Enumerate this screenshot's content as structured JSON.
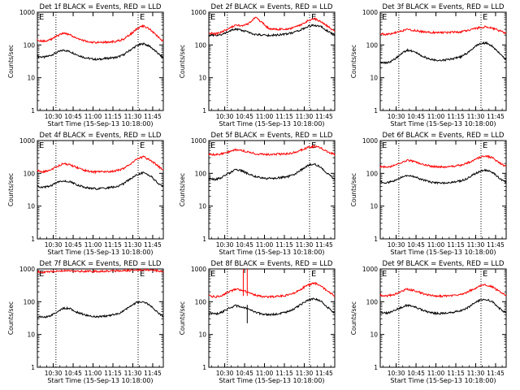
{
  "figure": {
    "start_time_label": "Start Time (15-Sep-13 10:18:00)",
    "time_ticks": [
      "10:30",
      "10:45",
      "11:00",
      "11:15",
      "11:30",
      "11:45"
    ],
    "y_axis_label": "Counts/sec",
    "y_ticks": [
      "1",
      "10",
      "100",
      "1000"
    ],
    "marker_letter": "E",
    "colors": {
      "events": "#000000",
      "lld": "#ff0000",
      "axes": "#000000"
    }
  },
  "chart_data": [
    {
      "type": "line",
      "title": "Det 1f BLACK = Events, RED = LLD",
      "xlabel": "Start Time (15-Sep-13 10:18:00)",
      "ylabel": "Counts/sec",
      "x_range_minutes": [
        0,
        95
      ],
      "ylim": [
        1,
        1000
      ],
      "y_scale": "log",
      "vertical_markers_minutes": [
        14,
        76,
        95
      ],
      "series": [
        {
          "name": "Events",
          "color": "#000000",
          "x": [
            0,
            5,
            10,
            15,
            20,
            25,
            30,
            35,
            40,
            45,
            50,
            55,
            60,
            65,
            70,
            75,
            80,
            85,
            90,
            95
          ],
          "values": [
            45,
            42,
            48,
            60,
            70,
            62,
            50,
            42,
            38,
            36,
            38,
            40,
            42,
            50,
            70,
            95,
            110,
            90,
            60,
            40
          ]
        },
        {
          "name": "LLD",
          "color": "#ff0000",
          "x": [
            0,
            5,
            10,
            15,
            20,
            25,
            30,
            35,
            40,
            45,
            50,
            55,
            60,
            65,
            70,
            75,
            80,
            85,
            90,
            95
          ],
          "values": [
            140,
            130,
            145,
            190,
            230,
            200,
            160,
            135,
            120,
            118,
            120,
            125,
            130,
            150,
            210,
            310,
            380,
            300,
            190,
            130
          ]
        }
      ]
    },
    {
      "type": "line",
      "title": "Det 2f BLACK = Events, RED = LLD",
      "xlabel": "Start Time (15-Sep-13 10:18:00)",
      "ylabel": "Counts/sec",
      "x_range_minutes": [
        0,
        95
      ],
      "ylim": [
        1,
        1000
      ],
      "y_scale": "log",
      "vertical_markers_minutes": [
        14,
        76,
        95
      ],
      "series": [
        {
          "name": "Events",
          "color": "#000000",
          "x": [
            0,
            5,
            10,
            15,
            20,
            25,
            30,
            35,
            40,
            45,
            50,
            55,
            60,
            65,
            70,
            75,
            80,
            85,
            90,
            95
          ],
          "values": [
            200,
            190,
            210,
            260,
            300,
            280,
            240,
            210,
            200,
            195,
            200,
            210,
            220,
            250,
            300,
            370,
            400,
            350,
            260,
            200
          ]
        },
        {
          "name": "LLD",
          "color": "#ff0000",
          "x": [
            0,
            5,
            10,
            15,
            20,
            25,
            30,
            35,
            40,
            45,
            50,
            55,
            60,
            65,
            70,
            75,
            80,
            85,
            90,
            95
          ],
          "values": [
            230,
            220,
            250,
            320,
            400,
            380,
            450,
            700,
            500,
            320,
            300,
            300,
            310,
            340,
            420,
            560,
            620,
            500,
            360,
            260
          ]
        }
      ]
    },
    {
      "type": "line",
      "title": "Det 3f BLACK = Events, RED = LLD",
      "xlabel": "Start Time (15-Sep-13 10:18:00)",
      "ylabel": "Counts/sec",
      "x_range_minutes": [
        0,
        95
      ],
      "ylim": [
        1,
        1000
      ],
      "y_scale": "log",
      "vertical_markers_minutes": [
        14,
        76,
        95
      ],
      "series": [
        {
          "name": "Events",
          "color": "#000000",
          "x": [
            0,
            5,
            10,
            15,
            20,
            25,
            30,
            35,
            40,
            45,
            50,
            55,
            60,
            65,
            70,
            75,
            80,
            85,
            90,
            95
          ],
          "values": [
            30,
            28,
            35,
            50,
            70,
            65,
            50,
            40,
            35,
            33,
            35,
            38,
            42,
            55,
            80,
            110,
            115,
            90,
            55,
            35
          ]
        },
        {
          "name": "LLD",
          "color": "#ff0000",
          "x": [
            0,
            5,
            10,
            15,
            20,
            25,
            30,
            35,
            40,
            45,
            50,
            55,
            60,
            65,
            70,
            75,
            80,
            85,
            90,
            95
          ],
          "values": [
            220,
            210,
            230,
            260,
            290,
            280,
            260,
            245,
            240,
            238,
            240,
            245,
            250,
            270,
            300,
            340,
            360,
            320,
            270,
            230
          ]
        }
      ]
    },
    {
      "type": "line",
      "title": "Det 4f BLACK = Events, RED = LLD",
      "xlabel": "Start Time (15-Sep-13 10:18:00)",
      "ylabel": "Counts/sec",
      "x_range_minutes": [
        0,
        95
      ],
      "ylim": [
        1,
        1000
      ],
      "y_scale": "log",
      "vertical_markers_minutes": [
        14,
        76,
        95
      ],
      "series": [
        {
          "name": "Events",
          "color": "#000000",
          "x": [
            0,
            5,
            10,
            15,
            20,
            25,
            30,
            35,
            40,
            45,
            50,
            55,
            60,
            65,
            70,
            75,
            80,
            85,
            90,
            95
          ],
          "values": [
            40,
            38,
            42,
            52,
            60,
            55,
            45,
            38,
            35,
            34,
            35,
            37,
            40,
            48,
            68,
            90,
            105,
            85,
            55,
            38
          ]
        },
        {
          "name": "LLD",
          "color": "#ff0000",
          "x": [
            0,
            5,
            10,
            15,
            20,
            25,
            30,
            35,
            40,
            45,
            50,
            55,
            60,
            65,
            70,
            75,
            80,
            85,
            90,
            95
          ],
          "values": [
            120,
            110,
            125,
            165,
            200,
            180,
            150,
            125,
            112,
            110,
            112,
            115,
            120,
            140,
            190,
            270,
            320,
            260,
            180,
            125
          ]
        }
      ]
    },
    {
      "type": "line",
      "title": "Det 5f BLACK = Events, RED = LLD",
      "xlabel": "Start Time (15-Sep-13 10:18:00)",
      "ylabel": "Counts/sec",
      "x_range_minutes": [
        0,
        95
      ],
      "ylim": [
        1,
        1000
      ],
      "y_scale": "log",
      "vertical_markers_minutes": [
        14,
        76,
        95
      ],
      "series": [
        {
          "name": "Events",
          "color": "#000000",
          "x": [
            0,
            5,
            10,
            15,
            20,
            25,
            30,
            35,
            40,
            45,
            50,
            55,
            60,
            65,
            70,
            75,
            80,
            85,
            90,
            95
          ],
          "values": [
            70,
            65,
            75,
            100,
            130,
            120,
            95,
            80,
            72,
            70,
            72,
            75,
            80,
            95,
            130,
            175,
            190,
            150,
            95,
            65
          ]
        },
        {
          "name": "LLD",
          "color": "#ff0000",
          "x": [
            0,
            5,
            10,
            15,
            20,
            25,
            30,
            35,
            40,
            45,
            50,
            55,
            60,
            65,
            70,
            75,
            80,
            85,
            90,
            95
          ],
          "values": [
            380,
            370,
            390,
            450,
            520,
            500,
            440,
            400,
            380,
            375,
            380,
            385,
            400,
            440,
            520,
            620,
            660,
            580,
            450,
            370
          ]
        }
      ]
    },
    {
      "type": "line",
      "title": "Det 6f BLACK = Events, RED = LLD",
      "xlabel": "Start Time (15-Sep-13 10:18:00)",
      "ylabel": "Counts/sec",
      "x_range_minutes": [
        0,
        95
      ],
      "ylim": [
        1,
        1000
      ],
      "y_scale": "log",
      "vertical_markers_minutes": [
        14,
        76,
        95
      ],
      "series": [
        {
          "name": "Events",
          "color": "#000000",
          "x": [
            0,
            5,
            10,
            15,
            20,
            25,
            30,
            35,
            40,
            45,
            50,
            55,
            60,
            65,
            70,
            75,
            80,
            85,
            90,
            95
          ],
          "values": [
            55,
            52,
            58,
            72,
            85,
            80,
            68,
            58,
            52,
            50,
            52,
            55,
            58,
            68,
            90,
            115,
            125,
            105,
            70,
            52
          ]
        },
        {
          "name": "LLD",
          "color": "#ff0000",
          "x": [
            0,
            5,
            10,
            15,
            20,
            25,
            30,
            35,
            40,
            45,
            50,
            55,
            60,
            65,
            70,
            75,
            80,
            85,
            90,
            95
          ],
          "values": [
            160,
            155,
            170,
            210,
            250,
            235,
            200,
            175,
            160,
            155,
            160,
            165,
            175,
            200,
            250,
            310,
            340,
            290,
            210,
            160
          ]
        }
      ]
    },
    {
      "type": "line",
      "title": "Det 7f BLACK = Events, RED = LLD",
      "xlabel": "Start Time (15-Sep-13 10:18:00)",
      "ylabel": "Counts/sec",
      "x_range_minutes": [
        0,
        95
      ],
      "ylim": [
        1,
        1000
      ],
      "y_scale": "log",
      "vertical_markers_minutes": [
        14,
        76,
        95
      ],
      "series": [
        {
          "name": "Events",
          "color": "#000000",
          "x": [
            0,
            5,
            10,
            15,
            20,
            25,
            30,
            35,
            40,
            45,
            50,
            55,
            60,
            65,
            70,
            75,
            80,
            85,
            90,
            95
          ],
          "values": [
            35,
            33,
            38,
            50,
            65,
            60,
            48,
            40,
            36,
            35,
            36,
            38,
            42,
            52,
            72,
            95,
            100,
            80,
            50,
            35
          ]
        },
        {
          "name": "LLD",
          "color": "#ff0000",
          "x": [
            0,
            5,
            10,
            15,
            20,
            25,
            30,
            35,
            40,
            45,
            50,
            55,
            60,
            65,
            70,
            75,
            80,
            85,
            90,
            95
          ],
          "values": [
            820,
            800,
            830,
            860,
            880,
            870,
            860,
            850,
            845,
            850,
            860,
            870,
            880,
            890,
            900,
            920,
            930,
            920,
            890,
            850
          ]
        }
      ]
    },
    {
      "type": "line",
      "title": "Det 8f BLACK = Events, RED = LLD",
      "xlabel": "Start Time (15-Sep-13 10:18:00)",
      "ylabel": "Counts/sec",
      "x_range_minutes": [
        0,
        95
      ],
      "ylim": [
        1,
        1000
      ],
      "y_scale": "log",
      "vertical_markers_minutes": [
        14,
        76,
        95
      ],
      "series": [
        {
          "name": "Events",
          "color": "#000000",
          "x": [
            0,
            5,
            10,
            15,
            20,
            25,
            30,
            35,
            40,
            45,
            50,
            55,
            60,
            65,
            70,
            75,
            80,
            85,
            90,
            95
          ],
          "values": [
            45,
            42,
            48,
            62,
            75,
            70,
            58,
            48,
            42,
            40,
            42,
            45,
            50,
            62,
            85,
            115,
            125,
            100,
            65,
            45
          ]
        },
        {
          "name": "LLD",
          "color": "#ff0000",
          "x": [
            0,
            5,
            10,
            15,
            20,
            25,
            30,
            35,
            40,
            45,
            50,
            55,
            60,
            65,
            70,
            75,
            80,
            85,
            90,
            95
          ],
          "values": [
            150,
            140,
            155,
            200,
            240,
            230,
            190,
            160,
            145,
            140,
            145,
            150,
            160,
            190,
            250,
            330,
            370,
            300,
            200,
            150
          ]
        }
      ]
    },
    {
      "type": "line",
      "title": "Det 9f BLACK = Events, RED = LLD",
      "xlabel": "Start Time (15-Sep-13 10:18:00)",
      "ylabel": "Counts/sec",
      "x_range_minutes": [
        0,
        95
      ],
      "ylim": [
        1,
        1000
      ],
      "y_scale": "log",
      "vertical_markers_minutes": [
        14,
        76,
        95
      ],
      "series": [
        {
          "name": "Events",
          "color": "#000000",
          "x": [
            0,
            5,
            10,
            15,
            20,
            25,
            30,
            35,
            40,
            45,
            50,
            55,
            60,
            65,
            70,
            75,
            80,
            85,
            90,
            95
          ],
          "values": [
            48,
            45,
            52,
            65,
            78,
            72,
            60,
            50,
            45,
            43,
            45,
            48,
            52,
            62,
            85,
            110,
            118,
            95,
            62,
            45
          ]
        },
        {
          "name": "LLD",
          "color": "#ff0000",
          "x": [
            0,
            5,
            10,
            15,
            20,
            25,
            30,
            35,
            40,
            45,
            50,
            55,
            60,
            65,
            70,
            75,
            80,
            85,
            90,
            95
          ],
          "values": [
            160,
            150,
            165,
            200,
            240,
            225,
            190,
            165,
            150,
            148,
            150,
            155,
            165,
            190,
            240,
            300,
            330,
            280,
            200,
            155
          ]
        }
      ]
    }
  ]
}
